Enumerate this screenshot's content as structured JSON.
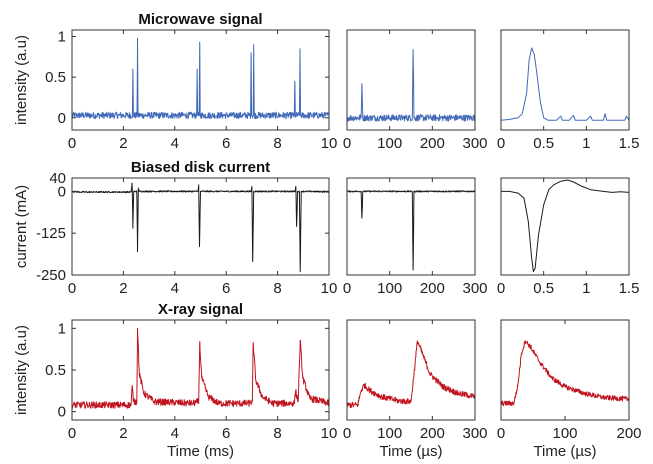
{
  "colors": {
    "microwave": "#4169B8",
    "current": "#1a1a1a",
    "xray": "#C0141E",
    "axis": "#333333"
  },
  "chart_data": [
    {
      "id": "mw_full",
      "type": "line",
      "title": "Microwave signal",
      "ylabel": "intensity (a.u)",
      "xlabel": "",
      "xlim": [
        0,
        10
      ],
      "ylim": [
        -0.15,
        1.08
      ],
      "xticks": [
        0,
        2,
        4,
        6,
        8,
        10
      ],
      "xtick_labels": [
        "0",
        "2",
        "4",
        "6",
        "8",
        "10"
      ],
      "yticks": [
        0,
        0.5,
        1
      ],
      "ytick_labels": [
        "0",
        "0.5",
        "1"
      ],
      "series": [
        {
          "color": "#4169B8",
          "noise": {
            "base": 0.03,
            "amp": 0.04
          },
          "points": [
            [
              0,
              0.03
            ],
            [
              2.35,
              0.03
            ],
            [
              2.37,
              0.6
            ],
            [
              2.39,
              0.03
            ],
            [
              2.53,
              0.03
            ],
            [
              2.55,
              0.98
            ],
            [
              2.57,
              0.03
            ],
            [
              4.85,
              0.03
            ],
            [
              4.87,
              0.6
            ],
            [
              4.89,
              0.03
            ],
            [
              4.95,
              0.03
            ],
            [
              4.97,
              0.93
            ],
            [
              4.99,
              0.03
            ],
            [
              6.95,
              0.03
            ],
            [
              6.97,
              0.8
            ],
            [
              6.99,
              0.03
            ],
            [
              7.05,
              0.03
            ],
            [
              7.07,
              0.9
            ],
            [
              7.09,
              0.03
            ],
            [
              8.65,
              0.03
            ],
            [
              8.67,
              0.45
            ],
            [
              8.69,
              0.03
            ],
            [
              8.85,
              0.03
            ],
            [
              8.87,
              0.85
            ],
            [
              8.89,
              0.03
            ],
            [
              10,
              0.03
            ]
          ]
        }
      ]
    },
    {
      "id": "mw_mid",
      "type": "line",
      "title": "",
      "ylabel": "",
      "xlabel": "",
      "xlim": [
        0,
        300
      ],
      "ylim": [
        -0.15,
        1.08
      ],
      "xticks": [
        0,
        100,
        200,
        300
      ],
      "xtick_labels": [
        "0",
        "100",
        "200",
        "300"
      ],
      "yticks": [],
      "ytick_labels": [],
      "series": [
        {
          "color": "#4169B8",
          "noise": {
            "base": 0.0,
            "amp": 0.04
          },
          "points": [
            [
              0,
              0.0
            ],
            [
              33,
              0.0
            ],
            [
              35,
              0.42
            ],
            [
              37,
              0.0
            ],
            [
              153,
              0.0
            ],
            [
              155,
              0.84
            ],
            [
              157,
              0.0
            ],
            [
              300,
              0.0
            ]
          ]
        }
      ]
    },
    {
      "id": "mw_zoom",
      "type": "line",
      "title": "",
      "ylabel": "",
      "xlabel": "",
      "xlim": [
        0,
        1.5
      ],
      "ylim": [
        -0.15,
        1.08
      ],
      "xticks": [
        0,
        0.5,
        1,
        1.5
      ],
      "xtick_labels": [
        "0",
        "0.5",
        "1",
        "1.5"
      ],
      "yticks": [],
      "ytick_labels": [],
      "series": [
        {
          "color": "#4169B8",
          "noise": null,
          "points": [
            [
              0,
              -0.03
            ],
            [
              0.1,
              -0.02
            ],
            [
              0.2,
              0.0
            ],
            [
              0.25,
              0.05
            ],
            [
              0.3,
              0.3
            ],
            [
              0.33,
              0.72
            ],
            [
              0.36,
              0.86
            ],
            [
              0.39,
              0.78
            ],
            [
              0.42,
              0.55
            ],
            [
              0.46,
              0.2
            ],
            [
              0.5,
              0.0
            ],
            [
              0.55,
              -0.03
            ],
            [
              0.65,
              -0.03
            ],
            [
              0.7,
              0.02
            ],
            [
              0.72,
              -0.03
            ],
            [
              0.8,
              -0.03
            ],
            [
              0.85,
              0.03
            ],
            [
              0.87,
              -0.03
            ],
            [
              1.0,
              -0.03
            ],
            [
              1.05,
              0.02
            ],
            [
              1.07,
              -0.03
            ],
            [
              1.2,
              -0.03
            ],
            [
              1.22,
              0.05
            ],
            [
              1.24,
              -0.03
            ],
            [
              1.45,
              -0.03
            ],
            [
              1.47,
              0.02
            ],
            [
              1.5,
              -0.03
            ]
          ]
        }
      ]
    },
    {
      "id": "cur_full",
      "type": "line",
      "title": "Biased disk current",
      "ylabel": "current (mA)",
      "xlabel": "",
      "xlim": [
        0,
        10
      ],
      "ylim": [
        -250,
        40
      ],
      "xticks": [
        0,
        2,
        4,
        6,
        8,
        10
      ],
      "xtick_labels": [
        "0",
        "2",
        "4",
        "6",
        "8",
        "10"
      ],
      "yticks": [
        40,
        0,
        -125,
        -250
      ],
      "ytick_labels": [
        "40",
        "0",
        "-125",
        "-250"
      ],
      "series": [
        {
          "color": "#1a1a1a",
          "noise": {
            "base": 0.0,
            "amp": 2
          },
          "points": [
            [
              0,
              0
            ],
            [
              0.3,
              -2
            ],
            [
              2.3,
              -2
            ],
            [
              2.34,
              25
            ],
            [
              2.37,
              -110
            ],
            [
              2.4,
              0
            ],
            [
              2.52,
              0
            ],
            [
              2.55,
              -180
            ],
            [
              2.58,
              10
            ],
            [
              2.62,
              0
            ],
            [
              4.9,
              0
            ],
            [
              4.93,
              20
            ],
            [
              4.96,
              -165
            ],
            [
              5.0,
              0
            ],
            [
              6.98,
              0
            ],
            [
              7.0,
              15
            ],
            [
              7.03,
              -210
            ],
            [
              7.07,
              0
            ],
            [
              8.68,
              0
            ],
            [
              8.71,
              15
            ],
            [
              8.74,
              -105
            ],
            [
              8.78,
              0
            ],
            [
              8.85,
              0
            ],
            [
              8.88,
              -240
            ],
            [
              8.92,
              0
            ],
            [
              10,
              -1
            ]
          ]
        }
      ]
    },
    {
      "id": "cur_mid",
      "type": "line",
      "title": "",
      "ylabel": "",
      "xlabel": "",
      "xlim": [
        0,
        300
      ],
      "ylim": [
        -250,
        40
      ],
      "xticks": [
        0,
        100,
        200,
        300
      ],
      "xtick_labels": [
        "0",
        "100",
        "200",
        "300"
      ],
      "yticks": [],
      "ytick_labels": [],
      "series": [
        {
          "color": "#1a1a1a",
          "noise": {
            "base": 0.0,
            "amp": 2
          },
          "points": [
            [
              0,
              0
            ],
            [
              33,
              0
            ],
            [
              35,
              -80
            ],
            [
              37,
              0
            ],
            [
              153,
              0
            ],
            [
              155,
              -235
            ],
            [
              157,
              0
            ],
            [
              300,
              0
            ]
          ]
        }
      ]
    },
    {
      "id": "cur_zoom",
      "type": "line",
      "title": "",
      "ylabel": "",
      "xlabel": "",
      "xlim": [
        0,
        1.5
      ],
      "ylim": [
        -250,
        40
      ],
      "xticks": [
        0,
        0.5,
        1,
        1.5
      ],
      "xtick_labels": [
        "0",
        "0.5",
        "1",
        "1.5"
      ],
      "yticks": [],
      "ytick_labels": [],
      "series": [
        {
          "color": "#1a1a1a",
          "noise": null,
          "points": [
            [
              0,
              0
            ],
            [
              0.1,
              0
            ],
            [
              0.2,
              -5
            ],
            [
              0.27,
              -20
            ],
            [
              0.32,
              -90
            ],
            [
              0.36,
              -200
            ],
            [
              0.38,
              -240
            ],
            [
              0.4,
              -230
            ],
            [
              0.44,
              -130
            ],
            [
              0.5,
              -40
            ],
            [
              0.56,
              5
            ],
            [
              0.62,
              20
            ],
            [
              0.7,
              30
            ],
            [
              0.78,
              34
            ],
            [
              0.85,
              28
            ],
            [
              0.95,
              15
            ],
            [
              1.05,
              5
            ],
            [
              1.2,
              0
            ],
            [
              1.3,
              -3
            ],
            [
              1.4,
              -1
            ],
            [
              1.5,
              -3
            ]
          ]
        }
      ]
    },
    {
      "id": "xr_full",
      "type": "line",
      "title": "X-ray signal",
      "ylabel": "intensity (a.u)",
      "xlabel": "Time (ms)",
      "xlim": [
        0,
        10
      ],
      "ylim": [
        -0.1,
        1.1
      ],
      "xticks": [
        0,
        2,
        4,
        6,
        8,
        10
      ],
      "xtick_labels": [
        "0",
        "2",
        "4",
        "6",
        "8",
        "10"
      ],
      "yticks": [
        0,
        0.5,
        1
      ],
      "ytick_labels": [
        "0",
        "0.5",
        "1"
      ],
      "series": [
        {
          "color": "#C0141E",
          "noise": {
            "base": 0.0,
            "amp": 0.04
          },
          "points": [
            [
              0,
              0.08
            ],
            [
              2.3,
              0.08
            ],
            [
              2.34,
              0.3
            ],
            [
              2.4,
              0.12
            ],
            [
              2.52,
              0.12
            ],
            [
              2.55,
              1.0
            ],
            [
              2.62,
              0.45
            ],
            [
              2.8,
              0.22
            ],
            [
              3.2,
              0.12
            ],
            [
              4.7,
              0.1
            ],
            [
              4.93,
              0.12
            ],
            [
              4.97,
              0.82
            ],
            [
              5.05,
              0.4
            ],
            [
              5.3,
              0.18
            ],
            [
              5.7,
              0.1
            ],
            [
              6.9,
              0.1
            ],
            [
              7.02,
              0.12
            ],
            [
              7.05,
              0.83
            ],
            [
              7.15,
              0.38
            ],
            [
              7.4,
              0.18
            ],
            [
              7.8,
              0.1
            ],
            [
              8.65,
              0.1
            ],
            [
              8.7,
              0.25
            ],
            [
              8.8,
              0.12
            ],
            [
              8.88,
              0.85
            ],
            [
              8.98,
              0.4
            ],
            [
              9.25,
              0.16
            ],
            [
              10,
              0.1
            ]
          ]
        }
      ]
    },
    {
      "id": "xr_mid",
      "type": "line",
      "title": "",
      "ylabel": "",
      "xlabel": "Time (µs)",
      "xlim": [
        0,
        300
      ],
      "ylim": [
        -0.1,
        1.1
      ],
      "xticks": [
        0,
        100,
        200,
        300
      ],
      "xtick_labels": [
        "0",
        "100",
        "200",
        "300"
      ],
      "yticks": [],
      "ytick_labels": [],
      "series": [
        {
          "color": "#C0141E",
          "noise": {
            "base": 0.0,
            "amp": 0.035
          },
          "points": [
            [
              0,
              0.08
            ],
            [
              25,
              0.08
            ],
            [
              33,
              0.25
            ],
            [
              40,
              0.32
            ],
            [
              55,
              0.25
            ],
            [
              80,
              0.18
            ],
            [
              120,
              0.13
            ],
            [
              150,
              0.12
            ],
            [
              158,
              0.5
            ],
            [
              165,
              0.85
            ],
            [
              175,
              0.72
            ],
            [
              195,
              0.45
            ],
            [
              225,
              0.3
            ],
            [
              260,
              0.22
            ],
            [
              300,
              0.18
            ]
          ]
        }
      ]
    },
    {
      "id": "xr_zoom",
      "type": "line",
      "title": "",
      "ylabel": "",
      "xlabel": "Time (µs)",
      "xlim": [
        0,
        200
      ],
      "ylim": [
        -0.1,
        1.1
      ],
      "xticks": [
        0,
        100,
        200
      ],
      "xtick_labels": [
        "0",
        "100",
        "200"
      ],
      "yticks": [],
      "ytick_labels": [],
      "series": [
        {
          "color": "#C0141E",
          "noise": {
            "base": 0.0,
            "amp": 0.03
          },
          "points": [
            [
              0,
              0.1
            ],
            [
              20,
              0.1
            ],
            [
              26,
              0.3
            ],
            [
              32,
              0.7
            ],
            [
              38,
              0.85
            ],
            [
              46,
              0.78
            ],
            [
              60,
              0.6
            ],
            [
              80,
              0.4
            ],
            [
              100,
              0.3
            ],
            [
              130,
              0.22
            ],
            [
              160,
              0.17
            ],
            [
              200,
              0.15
            ]
          ]
        }
      ]
    }
  ]
}
